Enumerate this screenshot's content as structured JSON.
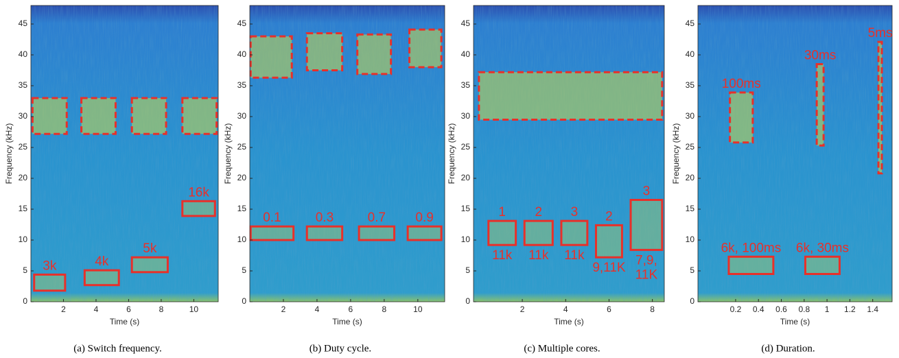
{
  "chart_data": [
    {
      "type": "spectrogram",
      "caption": "(a) Switch frequency.",
      "xlabel": "Time (s)",
      "ylabel": "Frequency (kHz)",
      "xlim": [
        0,
        11.5
      ],
      "ylim": [
        0,
        48
      ],
      "xticks": [
        2,
        4,
        6,
        8,
        10
      ],
      "yticks": [
        0,
        5,
        10,
        15,
        20,
        25,
        30,
        35,
        40,
        45
      ],
      "annotations": [
        {
          "label": "3k",
          "x": [
            0.2,
            2.1
          ],
          "y": [
            1.8,
            4.4
          ],
          "dashed": false
        },
        {
          "label": "4k",
          "x": [
            3.3,
            5.4
          ],
          "y": [
            2.7,
            5.1
          ],
          "dashed": false
        },
        {
          "label": "5k",
          "x": [
            6.2,
            8.4
          ],
          "y": [
            4.8,
            7.2
          ],
          "dashed": false
        },
        {
          "label": "16k",
          "x": [
            9.3,
            11.3
          ],
          "y": [
            13.9,
            16.3
          ],
          "dashed": false
        },
        {
          "x": [
            0.1,
            2.2
          ],
          "y": [
            27.2,
            33.0
          ],
          "dashed": true
        },
        {
          "x": [
            3.1,
            5.2
          ],
          "y": [
            27.2,
            33.0
          ],
          "dashed": true
        },
        {
          "x": [
            6.2,
            8.3
          ],
          "y": [
            27.2,
            33.0
          ],
          "dashed": true
        },
        {
          "x": [
            9.3,
            11.4
          ],
          "y": [
            27.2,
            33.0
          ],
          "dashed": true
        }
      ]
    },
    {
      "type": "spectrogram",
      "caption": "(b) Duty cycle.",
      "xlabel": "Time (s)",
      "ylabel": "Frequency (kHz)",
      "xlim": [
        0,
        11.6
      ],
      "ylim": [
        0,
        48
      ],
      "xticks": [
        2,
        4,
        6,
        8,
        10
      ],
      "yticks": [
        0,
        5,
        10,
        15,
        20,
        25,
        30,
        35,
        40,
        45
      ],
      "annotations": [
        {
          "label": "0.1",
          "x": [
            0.05,
            2.6
          ],
          "y": [
            10.0,
            12.2
          ],
          "dashed": false
        },
        {
          "label": "0.3",
          "x": [
            3.4,
            5.5
          ],
          "y": [
            10.0,
            12.2
          ],
          "dashed": false
        },
        {
          "label": "0.7",
          "x": [
            6.5,
            8.6
          ],
          "y": [
            10.0,
            12.2
          ],
          "dashed": false
        },
        {
          "label": "0.9",
          "x": [
            9.4,
            11.4
          ],
          "y": [
            10.0,
            12.2
          ],
          "dashed": false
        },
        {
          "x": [
            0.05,
            2.5
          ],
          "y": [
            36.3,
            43.0
          ],
          "dashed": true
        },
        {
          "x": [
            3.4,
            5.5
          ],
          "y": [
            37.5,
            43.5
          ],
          "dashed": true
        },
        {
          "x": [
            6.4,
            8.4
          ],
          "y": [
            36.9,
            43.3
          ],
          "dashed": true
        },
        {
          "x": [
            9.5,
            11.4
          ],
          "y": [
            38.0,
            44.1
          ],
          "dashed": true
        }
      ]
    },
    {
      "type": "spectrogram",
      "caption": "(c) Multiple cores.",
      "xlabel": "Time (s)",
      "ylabel": "Frequency (kHz)",
      "xlim": [
        -0.25,
        8.55
      ],
      "ylim": [
        0,
        48
      ],
      "xticks": [
        2,
        4,
        6,
        8
      ],
      "yticks": [
        0,
        5,
        10,
        15,
        20,
        25,
        30,
        35,
        40,
        45
      ],
      "annotations": [
        {
          "label": "1",
          "label_below": [
            "11k"
          ],
          "x": [
            0.44,
            1.7
          ],
          "y": [
            9.2,
            13.1
          ],
          "dashed": false
        },
        {
          "label": "2",
          "label_below": [
            "11k"
          ],
          "x": [
            2.1,
            3.4
          ],
          "y": [
            9.2,
            13.1
          ],
          "dashed": false
        },
        {
          "label": "3",
          "label_below": [
            "11k"
          ],
          "x": [
            3.8,
            5.0
          ],
          "y": [
            9.2,
            13.1
          ],
          "dashed": false
        },
        {
          "label": "2",
          "label_below": [
            "9,11K"
          ],
          "x": [
            5.4,
            6.6
          ],
          "y": [
            7.2,
            12.4
          ],
          "dashed": false
        },
        {
          "label": "3",
          "label_below": [
            "7,9,",
            "11K"
          ],
          "x": [
            7.0,
            8.45
          ],
          "y": [
            8.4,
            16.5
          ],
          "dashed": false
        },
        {
          "x": [
            0.0,
            8.45
          ],
          "y": [
            29.5,
            37.2
          ],
          "dashed": true
        }
      ]
    },
    {
      "type": "spectrogram",
      "caption": "(d) Duration.",
      "xlabel": "Time (s)",
      "ylabel": "Frequency (kHz)",
      "xlim": [
        -0.13,
        1.57
      ],
      "ylim": [
        0,
        48
      ],
      "xticks": [
        0.2,
        0.4,
        0.6,
        0.8,
        1,
        1.2,
        1.4
      ],
      "yticks": [
        0,
        5,
        10,
        15,
        20,
        25,
        30,
        35,
        40,
        45
      ],
      "annotations": [
        {
          "label": "6k, 100ms",
          "x": [
            0.14,
            0.53
          ],
          "y": [
            4.5,
            7.3
          ],
          "dashed": false
        },
        {
          "label": "6k, 30ms",
          "x": [
            0.81,
            1.11
          ],
          "y": [
            4.5,
            7.3
          ],
          "dashed": false
        },
        {
          "label": "100ms",
          "x": [
            0.15,
            0.35
          ],
          "y": [
            25.8,
            33.9
          ],
          "dashed": true
        },
        {
          "label": "30ms",
          "x": [
            0.91,
            0.97
          ],
          "y": [
            25.3,
            38.5
          ],
          "dashed": true
        },
        {
          "label": "5ms",
          "x": [
            1.45,
            1.48
          ],
          "y": [
            20.8,
            42.1
          ],
          "dashed": true
        }
      ]
    }
  ]
}
